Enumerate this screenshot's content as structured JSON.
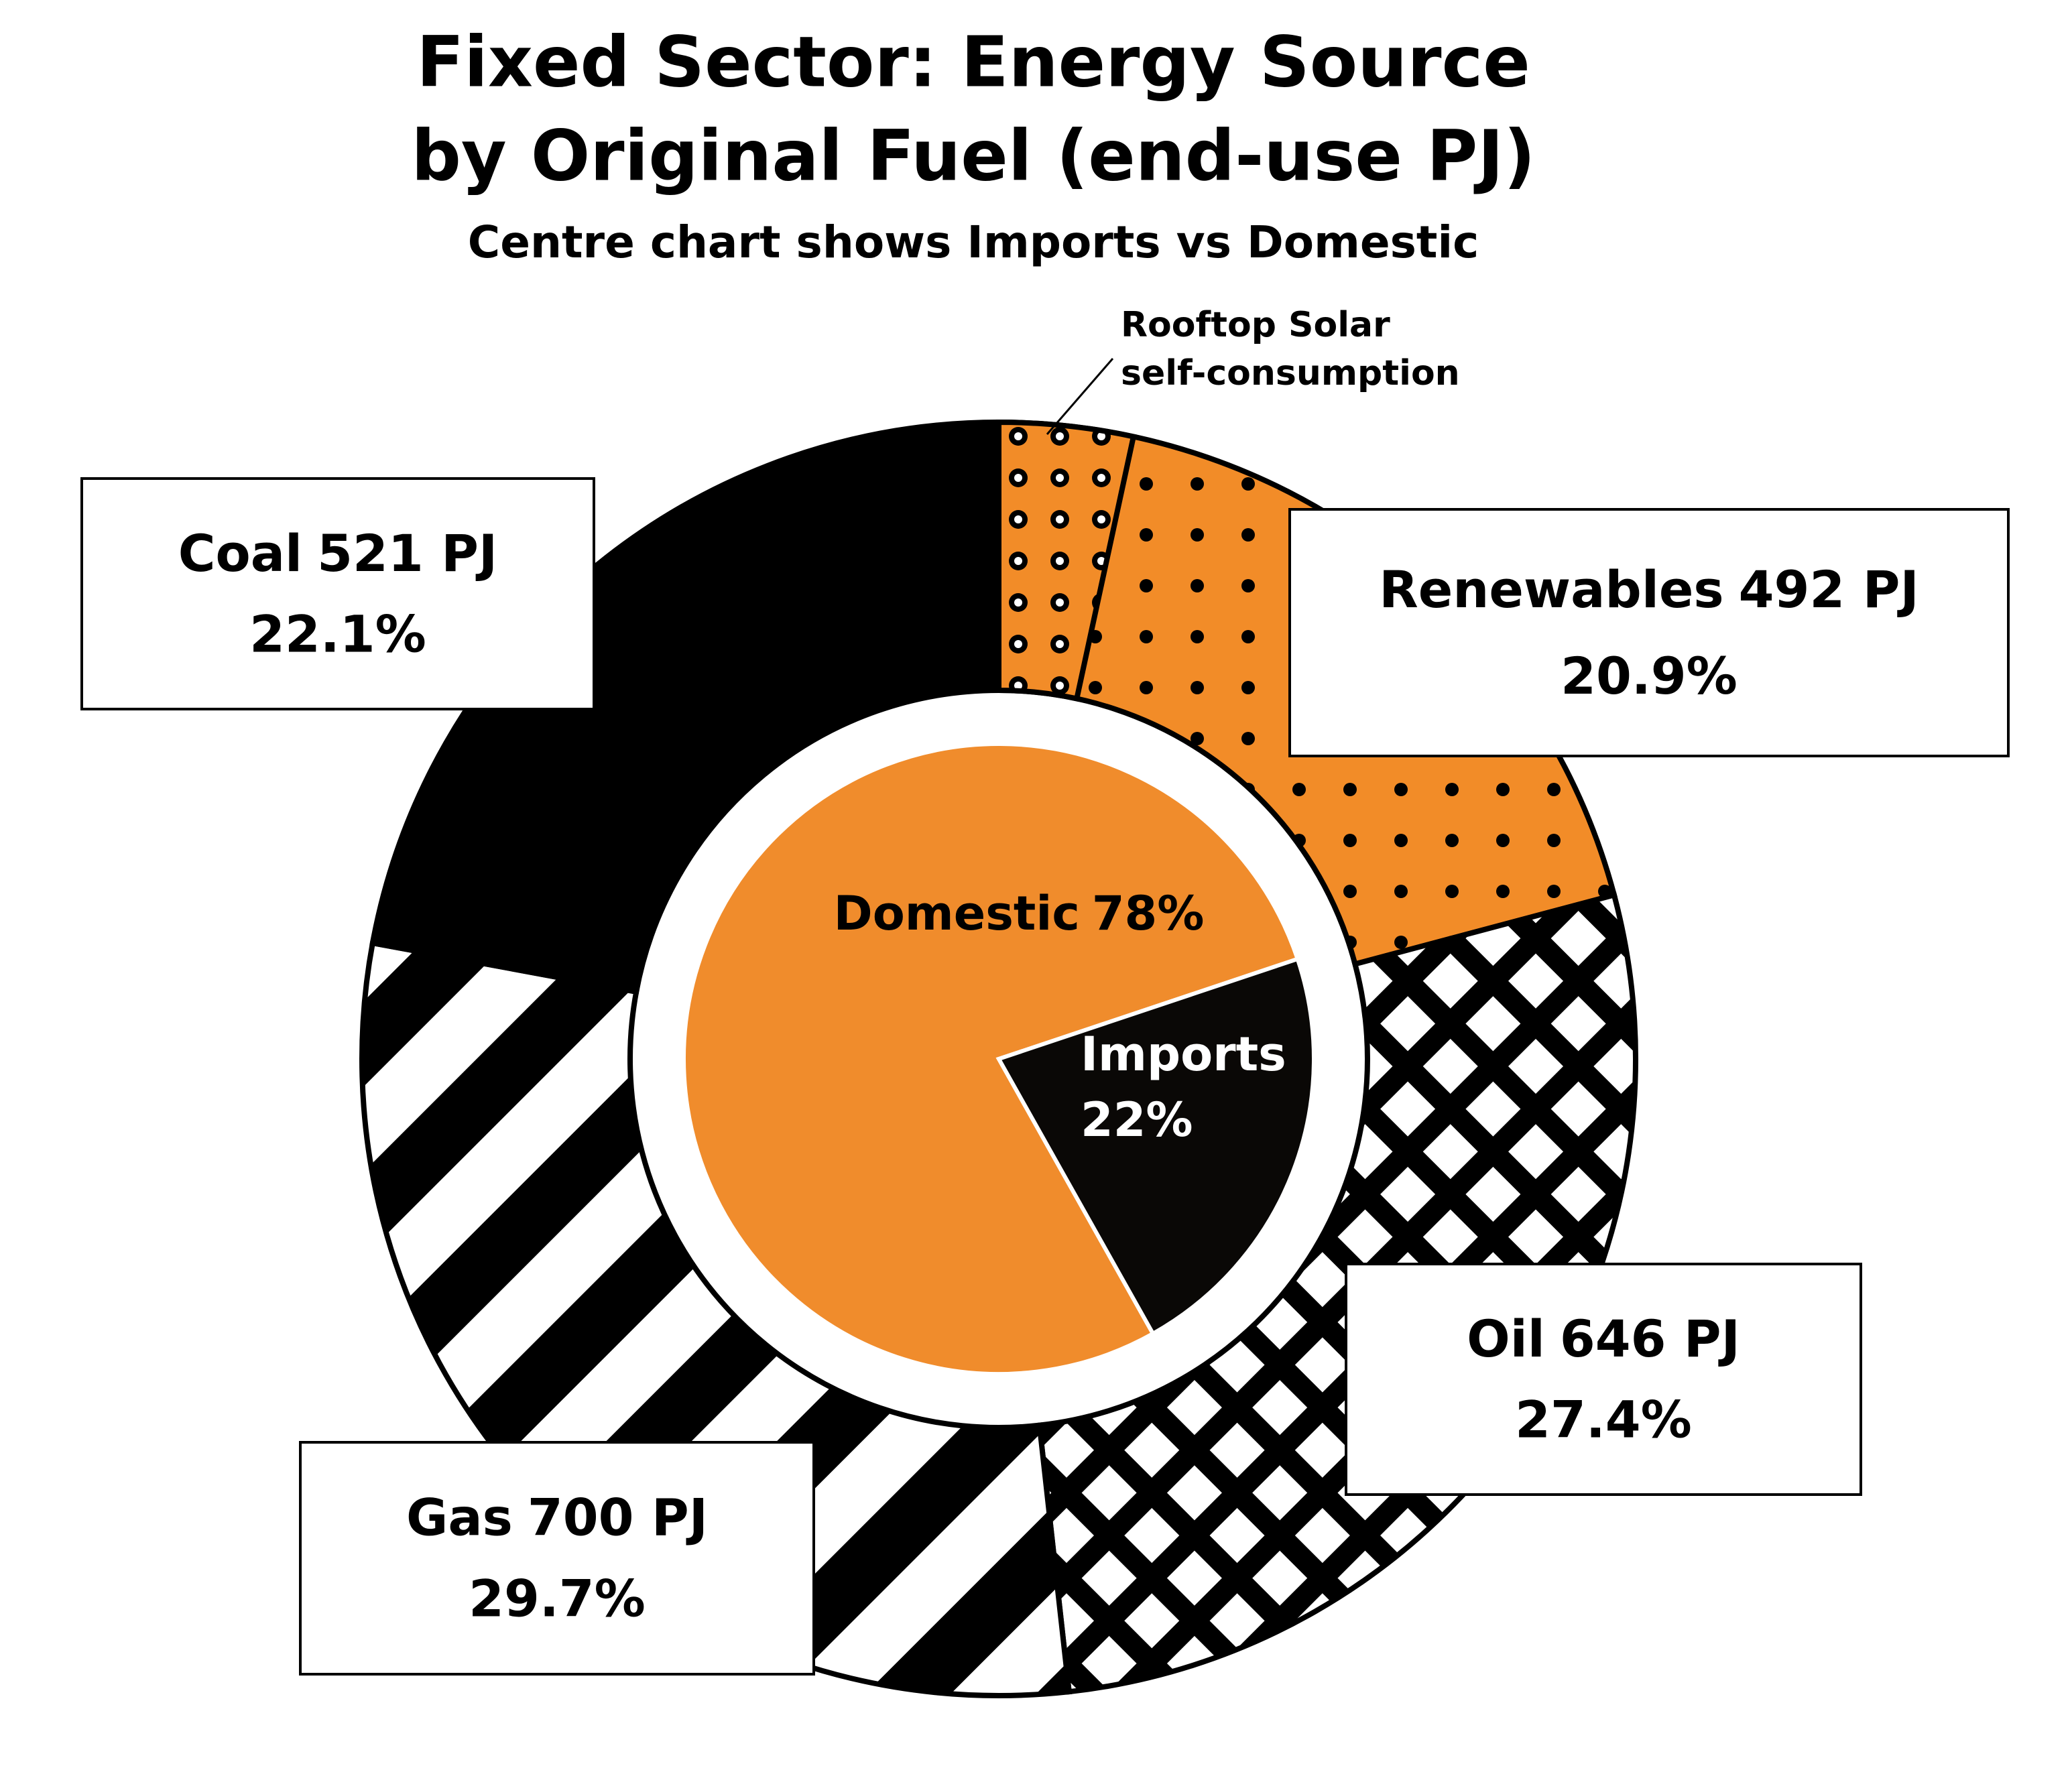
{
  "chart_data": [
    {
      "type": "donut",
      "title": [
        "Fixed Sector: Energy Source",
        "by Original Fuel (end-use PJ)"
      ],
      "subtitle": "Centre chart shows Imports vs Domestic",
      "categories": [
        "Renewables",
        "Oil",
        "Gas",
        "Coal"
      ],
      "values": [
        492,
        646,
        700,
        521
      ],
      "value_labels": [
        "492 PJ",
        "646 PJ",
        "700 PJ",
        "521 PJ"
      ],
      "shares": [
        20.9,
        27.4,
        29.7,
        22.1
      ],
      "share_labels": [
        "20.9%",
        "27.4%",
        "29.7%",
        "22.1%"
      ],
      "colors": [
        "#f28c28",
        "#000000",
        "#000000",
        "#000000"
      ],
      "patterns": [
        "dots",
        "checker",
        "stripes",
        "solid"
      ],
      "sub_segment": {
        "name": [
          "Rooftop Solar",
          "self-consumption"
        ],
        "value": 80,
        "color": "#f28c28",
        "pattern": "ringed-dots"
      }
    },
    {
      "type": "pie",
      "categories": [
        "Domestic",
        "Imports"
      ],
      "values": [
        78,
        22
      ],
      "value_labels": [
        "78%",
        "22%"
      ],
      "colors": [
        "#f08c2c",
        "#0a0806"
      ]
    }
  ]
}
